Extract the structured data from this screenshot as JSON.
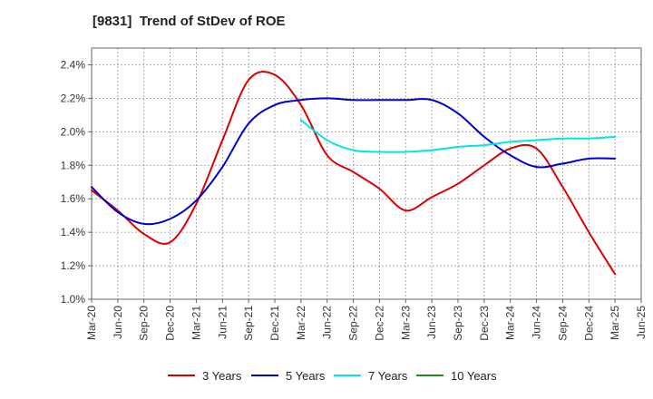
{
  "chart_data": {
    "type": "line",
    "title": "[9831]  Trend of StDev of ROE",
    "xlabel": "",
    "ylabel": "",
    "x": [
      "Mar-20",
      "Jun-20",
      "Sep-20",
      "Dec-20",
      "Mar-21",
      "Jun-21",
      "Sep-21",
      "Dec-21",
      "Mar-22",
      "Jun-22",
      "Sep-22",
      "Dec-22",
      "Mar-23",
      "Jun-23",
      "Sep-23",
      "Dec-23",
      "Mar-24",
      "Jun-24",
      "Sep-24",
      "Dec-24",
      "Mar-25",
      "Jun-25"
    ],
    "x_tick_labels": [
      "Mar-20",
      "Jun-20",
      "Sep-20",
      "Dec-20",
      "Mar-21",
      "Jun-21",
      "Sep-21",
      "Dec-21",
      "Mar-22",
      "Jun-22",
      "Sep-22",
      "Dec-22",
      "Mar-23",
      "Jun-23",
      "Sep-23",
      "Dec-23",
      "Mar-24",
      "Jun-24",
      "Sep-24",
      "Dec-24",
      "Mar-25",
      "Jun-25"
    ],
    "y_tick_labels": [
      "1.0%",
      "1.2%",
      "1.4%",
      "1.6%",
      "1.8%",
      "2.0%",
      "2.2%",
      "2.4%"
    ],
    "y_ticks": [
      1.0,
      1.2,
      1.4,
      1.6,
      1.8,
      2.0,
      2.2,
      2.4
    ],
    "ylim": [
      1.0,
      2.5
    ],
    "grid": true,
    "legend_position": "bottom",
    "series": [
      {
        "name": "3 Years",
        "color": "#dd0000",
        "values": [
          1.65,
          1.53,
          1.39,
          1.34,
          1.57,
          1.95,
          2.31,
          2.34,
          2.16,
          1.86,
          1.76,
          1.66,
          1.53,
          1.61,
          1.69,
          1.8,
          1.9,
          1.9,
          1.67,
          1.4,
          1.15,
          null
        ]
      },
      {
        "name": "5 Years",
        "color": "#0000cc",
        "values": [
          1.67,
          1.52,
          1.45,
          1.48,
          1.59,
          1.79,
          2.05,
          2.16,
          2.19,
          2.2,
          2.19,
          2.19,
          2.19,
          2.19,
          2.11,
          1.97,
          1.86,
          1.79,
          1.81,
          1.84,
          1.84,
          null
        ]
      },
      {
        "name": "7 Years",
        "color": "#00e5e5",
        "values": [
          null,
          null,
          null,
          null,
          null,
          null,
          null,
          null,
          2.07,
          1.95,
          1.89,
          1.88,
          1.88,
          1.89,
          1.91,
          1.92,
          1.94,
          1.95,
          1.96,
          1.96,
          1.97,
          null
        ]
      },
      {
        "name": "10 Years",
        "color": "#228b22",
        "values": [
          null,
          null,
          null,
          null,
          null,
          null,
          null,
          null,
          null,
          null,
          null,
          null,
          null,
          null,
          null,
          null,
          null,
          null,
          null,
          null,
          null,
          null
        ]
      }
    ]
  }
}
